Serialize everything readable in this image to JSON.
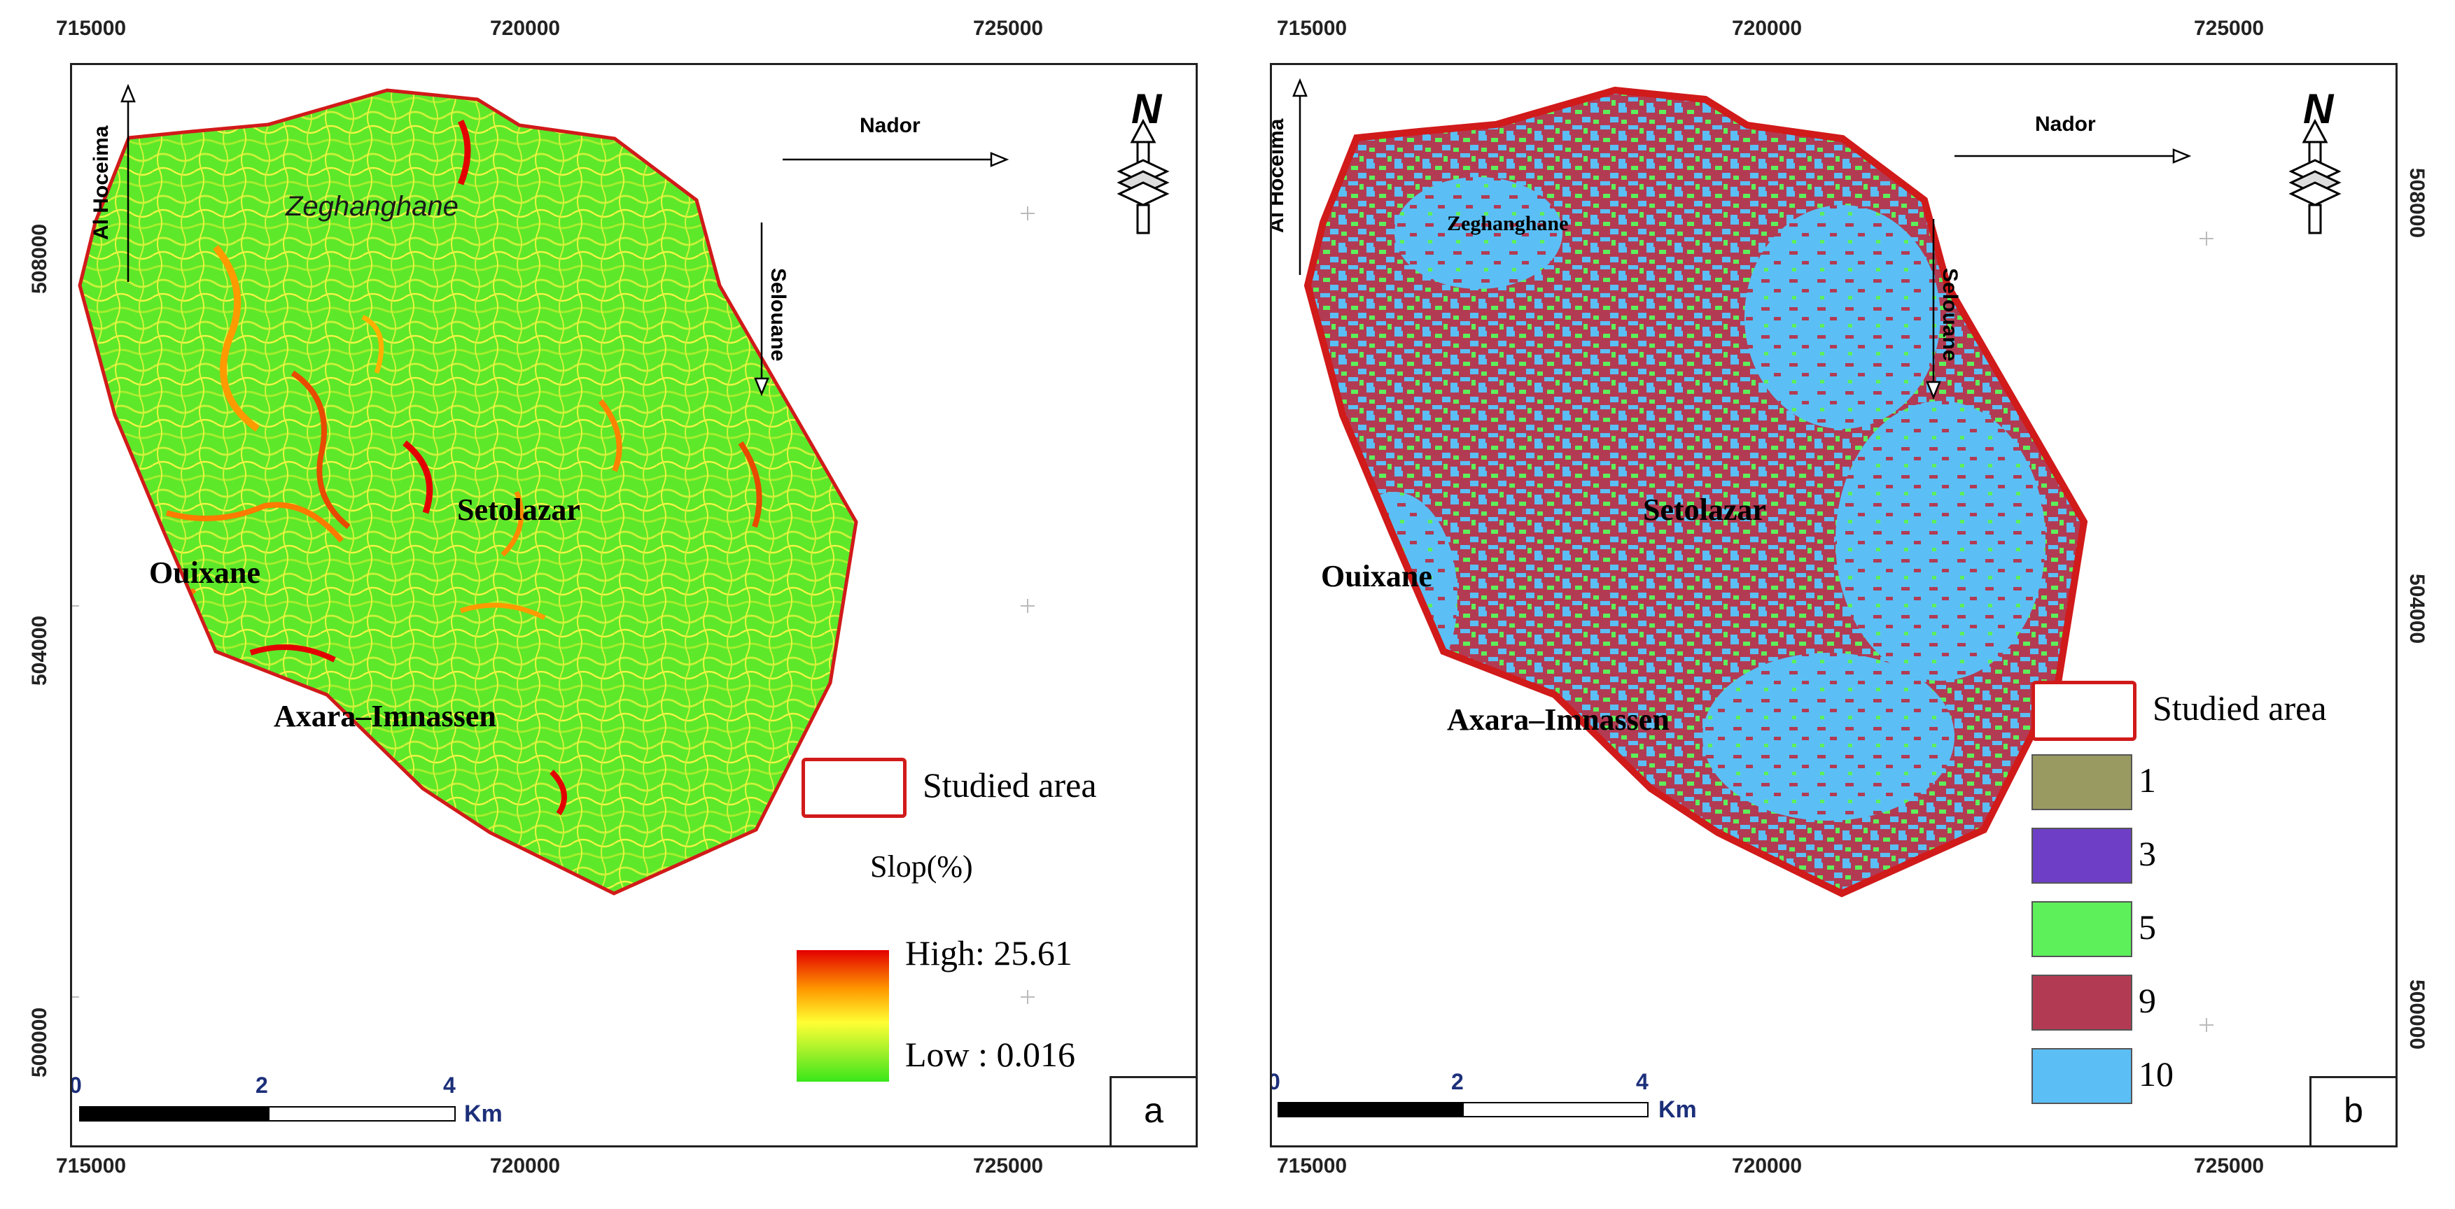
{
  "axes": {
    "x_ticks": [
      "715000",
      "720000",
      "725000"
    ],
    "y_ticks": [
      "508000",
      "504000",
      "500000"
    ]
  },
  "directions": {
    "al_hoceima": "Al Hoceima",
    "nador": "Nador",
    "selouane": "Selouane"
  },
  "places": {
    "zeghanghane": "Zeghanghane",
    "setolazar": "Setolazar",
    "ouixane": "Ouixane",
    "axara": "Axara–Imnassen"
  },
  "scale": {
    "labels": [
      "0",
      "2",
      "4"
    ],
    "unit": "Km"
  },
  "north": "N",
  "panel_a": {
    "tag": "a",
    "legend": {
      "studied_area": "Studied area",
      "title": "Slop(%)",
      "high": "High: 25.61",
      "low": "Low : 0.016"
    }
  },
  "panel_b": {
    "tag": "b",
    "legend": {
      "studied_area": "Studied area",
      "classes": [
        {
          "label": "1",
          "color": "#989a62"
        },
        {
          "label": "3",
          "color": "#6e3fc6"
        },
        {
          "label": "5",
          "color": "#5df05a"
        },
        {
          "label": "9",
          "color": "#b23b53"
        },
        {
          "label": "10",
          "color": "#5bbff5"
        }
      ]
    }
  },
  "colors": {
    "boundary": "#d11a1a",
    "slope_low": "#38e61a",
    "slope_high": "#e30000"
  }
}
